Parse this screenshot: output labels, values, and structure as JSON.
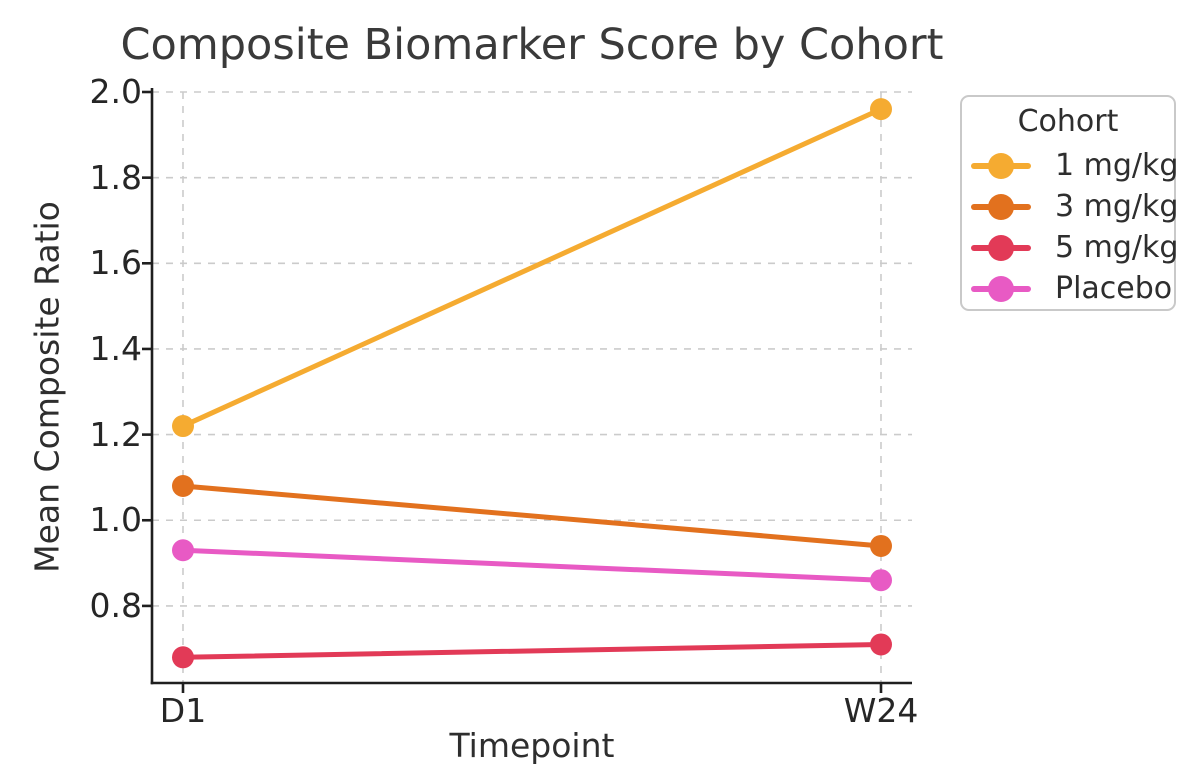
{
  "chart_data": {
    "type": "line",
    "title": "Composite Biomarker Score by Cohort",
    "xlabel": "Timepoint",
    "ylabel": "Mean Composite Ratio",
    "categories": [
      "D1",
      "W24"
    ],
    "series": [
      {
        "name": "1 mg/kg",
        "color": "#F5AB31",
        "values": [
          1.22,
          1.96
        ]
      },
      {
        "name": "3 mg/kg",
        "color": "#E2711E",
        "values": [
          1.08,
          0.94
        ]
      },
      {
        "name": "5 mg/kg",
        "color": "#E23A57",
        "values": [
          0.68,
          0.71
        ]
      },
      {
        "name": "Placebo",
        "color": "#E85AC4",
        "values": [
          0.93,
          0.86
        ]
      }
    ],
    "legend": {
      "title": "Cohort",
      "position": "outside-upper-right"
    },
    "yticks": [
      2.0,
      1.8,
      1.6,
      1.4,
      1.2,
      1.0,
      0.8
    ],
    "ytick_labels": [
      "2.0",
      "1.8",
      "1.6",
      "1.4",
      "1.2",
      "1.0",
      "0.8"
    ],
    "ylim": [
      0.62,
      2.0
    ],
    "grid": true,
    "grid_style": "dashed",
    "colors": {
      "grid": "#cbcbcb",
      "spine": "#1f1f1f",
      "text": "#2e2e2e",
      "background": "#ffffff"
    }
  }
}
